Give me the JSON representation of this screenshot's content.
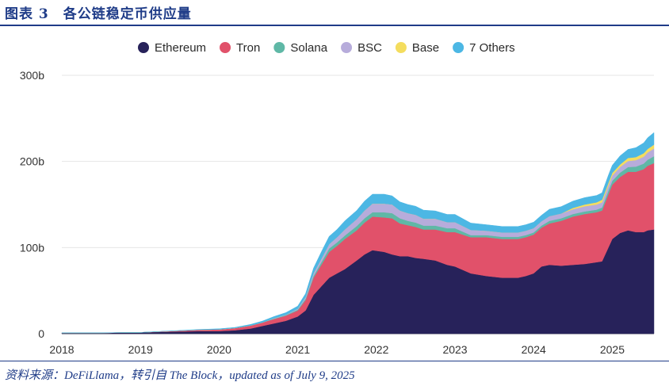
{
  "figure": {
    "title": "图表 3　各公链稳定币供应量",
    "source": "资料来源：DeFiLlama，转引自 The Block，updated as of July 9, 2025"
  },
  "chart_data": {
    "type": "area",
    "stacked": true,
    "title": "",
    "xlabel": "",
    "ylabel": "",
    "x_ticks": [
      "2018",
      "2019",
      "2020",
      "2021",
      "2022",
      "2023",
      "2024",
      "2025"
    ],
    "y_ticks": [
      "0",
      "100b",
      "200b",
      "300b"
    ],
    "xlim": [
      2018.0,
      2025.53
    ],
    "ylim": [
      0,
      300
    ],
    "grid": true,
    "legend_position": "top",
    "x": [
      2018.0,
      2018.5,
      2019.0,
      2019.25,
      2019.5,
      2019.75,
      2020.0,
      2020.2,
      2020.3,
      2020.4,
      2020.55,
      2020.7,
      2020.85,
      2021.0,
      2021.1,
      2021.2,
      2021.3,
      2021.4,
      2021.5,
      2021.6,
      2021.75,
      2021.85,
      2021.95,
      2022.1,
      2022.2,
      2022.3,
      2022.4,
      2022.5,
      2022.6,
      2022.75,
      2022.9,
      2023.0,
      2023.2,
      2023.4,
      2023.6,
      2023.8,
      2023.9,
      2024.0,
      2024.1,
      2024.2,
      2024.35,
      2024.5,
      2024.65,
      2024.8,
      2024.87,
      2024.95,
      2025.0,
      2025.1,
      2025.2,
      2025.3,
      2025.4,
      2025.45,
      2025.53
    ],
    "series": [
      {
        "name": "Ethereum",
        "color": "#27225a",
        "values": [
          1,
          1,
          1.5,
          2,
          2.5,
          3,
          3,
          4,
          5,
          6,
          9,
          12,
          15,
          20,
          27,
          45,
          55,
          65,
          70,
          75,
          85,
          92,
          97,
          95,
          92,
          90,
          90,
          88,
          87,
          85,
          80,
          78,
          70,
          67,
          65,
          65,
          67,
          70,
          78,
          80,
          79,
          80,
          81,
          83,
          84,
          100,
          110,
          117,
          120,
          118,
          118,
          120,
          121
        ]
      },
      {
        "name": "Tron",
        "color": "#e1516a",
        "values": [
          0,
          0,
          0,
          0.5,
          1,
          1.5,
          2,
          2.5,
          3,
          3.5,
          4,
          5,
          6,
          7,
          12,
          20,
          25,
          30,
          32,
          35,
          35,
          37,
          39,
          40,
          42,
          38,
          36,
          36,
          34,
          36,
          38,
          40,
          42,
          45,
          45,
          45,
          45,
          45,
          45,
          48,
          52,
          56,
          58,
          58,
          59,
          62,
          63,
          65,
          68,
          70,
          73,
          75,
          77
        ]
      },
      {
        "name": "Solana",
        "color": "#5fb8a6",
        "values": [
          0,
          0,
          0,
          0,
          0,
          0,
          0,
          0,
          0,
          0,
          0,
          0.5,
          0.5,
          1,
          1.5,
          2,
          3,
          4,
          4,
          4,
          5,
          5,
          5,
          6,
          6,
          6,
          5,
          5,
          4.5,
          4.5,
          4.5,
          4.5,
          2.5,
          2.5,
          2.5,
          2.5,
          2.5,
          2.5,
          2.5,
          3,
          3,
          3,
          3,
          3,
          3.5,
          4,
          4.5,
          5,
          5.5,
          6,
          6.5,
          7,
          8
        ]
      },
      {
        "name": "BSC",
        "color": "#b7acdb",
        "values": [
          0,
          0,
          0,
          0,
          0,
          0,
          0,
          0,
          0,
          0,
          0,
          0.5,
          0.5,
          1,
          2,
          3,
          4,
          5,
          6,
          7,
          8,
          9,
          10,
          10,
          10,
          9,
          9,
          9,
          8,
          8,
          7,
          7,
          6,
          5,
          5,
          5,
          5,
          5,
          5,
          5.5,
          5.5,
          5.5,
          6,
          6,
          6,
          6,
          6,
          6.5,
          7,
          7.5,
          8,
          8.5,
          9
        ]
      },
      {
        "name": "Base",
        "color": "#f4dd5e",
        "values": [
          0,
          0,
          0,
          0,
          0,
          0,
          0,
          0,
          0,
          0,
          0,
          0,
          0,
          0,
          0,
          0,
          0,
          0,
          0,
          0,
          0,
          0,
          0,
          0,
          0,
          0,
          0,
          0,
          0,
          0,
          0,
          0,
          0,
          0,
          0,
          0,
          0,
          0,
          0,
          0,
          0,
          1.5,
          2,
          2.5,
          3,
          3,
          3,
          3,
          3.5,
          3.5,
          4,
          4,
          4.5
        ]
      },
      {
        "name": "7 Others",
        "color": "#4cb7e4",
        "values": [
          0,
          0,
          0,
          0.2,
          0.3,
          0.5,
          0.7,
          0.8,
          1,
          1.3,
          1.6,
          2,
          2.5,
          3,
          4,
          6,
          8,
          9,
          9,
          10,
          10,
          11,
          11,
          11,
          10,
          10,
          10,
          10,
          10,
          9,
          9,
          9,
          8,
          7,
          7,
          7,
          7,
          7,
          7,
          8,
          8,
          8,
          8,
          8,
          8,
          9,
          9,
          10,
          10,
          11,
          12,
          13,
          14
        ]
      }
    ]
  }
}
